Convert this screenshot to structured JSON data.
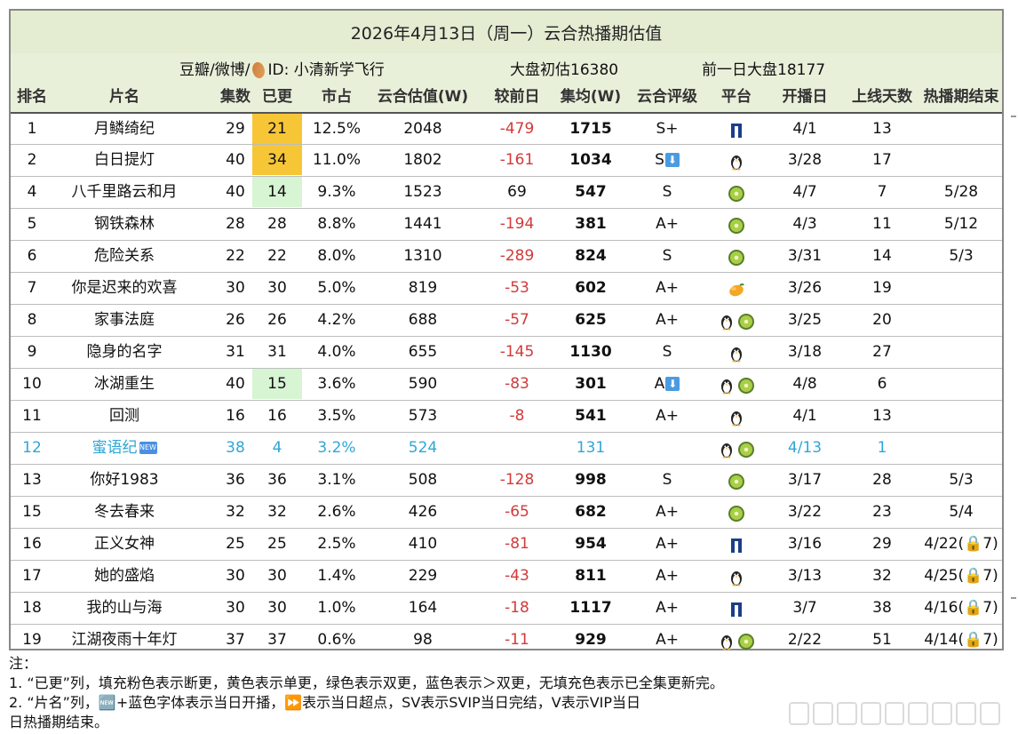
{
  "title": "2026年4月13日（周一）云合热播期估值",
  "subheader": {
    "source_prefix": "豆瓣/微博/",
    "source_id": "ID: 小清新学飞行",
    "market_initial": "大盘初估16380",
    "market_prev": "前一日大盘18177"
  },
  "columns": [
    "排名",
    "片名",
    "集数",
    "已更",
    "市占",
    "云合估值(W)",
    "较前日",
    "集均(W)",
    "云合评级",
    "平台",
    "开播日",
    "上线天数",
    "热播期结束"
  ],
  "colors": {
    "header_bg": "#e9f0da",
    "yellow": "#f7c637",
    "green": "#d7f4d3",
    "negative": "#d23a3a",
    "new_blue": "#2fa7d6"
  },
  "rows": [
    {
      "rank": "1",
      "name": "月鳞绮纪",
      "eps": "29",
      "aired": "21",
      "aired_fill": "yellow",
      "share": "12.5%",
      "est": "2048",
      "delta": "-479",
      "avg": "1715",
      "rating": "S+",
      "rating_arrow": "",
      "platforms": [
        "youku-icon"
      ],
      "start": "4/1",
      "days": "13",
      "end": ""
    },
    {
      "rank": "2",
      "name": "白日提灯",
      "eps": "40",
      "aired": "34",
      "aired_fill": "yellow",
      "share": "11.0%",
      "est": "1802",
      "delta": "-161",
      "avg": "1034",
      "rating": "S",
      "rating_arrow": "⬇",
      "platforms": [
        "tencent-penguin-icon"
      ],
      "start": "3/28",
      "days": "17",
      "end": ""
    },
    {
      "rank": "4",
      "name": "八千里路云和月",
      "eps": "40",
      "aired": "14",
      "aired_fill": "green",
      "share": "9.3%",
      "est": "1523",
      "delta": "69",
      "avg": "547",
      "rating": "S",
      "rating_arrow": "",
      "platforms": [
        "iqiyi-kiwi-icon"
      ],
      "start": "4/7",
      "days": "7",
      "end": "5/28"
    },
    {
      "rank": "5",
      "name": "钢铁森林",
      "eps": "28",
      "aired": "28",
      "aired_fill": "",
      "share": "8.8%",
      "est": "1441",
      "delta": "-194",
      "avg": "381",
      "rating": "A+",
      "rating_arrow": "",
      "platforms": [
        "iqiyi-kiwi-icon"
      ],
      "start": "4/3",
      "days": "11",
      "end": "5/12"
    },
    {
      "rank": "6",
      "name": "危险关系",
      "eps": "22",
      "aired": "22",
      "aired_fill": "",
      "share": "8.0%",
      "est": "1310",
      "delta": "-289",
      "avg": "824",
      "rating": "S",
      "rating_arrow": "",
      "platforms": [
        "iqiyi-kiwi-icon"
      ],
      "start": "3/31",
      "days": "14",
      "end": "5/3"
    },
    {
      "rank": "7",
      "name": "你是迟来的欢喜",
      "eps": "30",
      "aired": "30",
      "aired_fill": "",
      "share": "5.0%",
      "est": "819",
      "delta": "-53",
      "avg": "602",
      "rating": "A+",
      "rating_arrow": "",
      "platforms": [
        "mango-icon"
      ],
      "start": "3/26",
      "days": "19",
      "end": ""
    },
    {
      "rank": "8",
      "name": "家事法庭",
      "eps": "26",
      "aired": "26",
      "aired_fill": "",
      "share": "4.2%",
      "est": "688",
      "delta": "-57",
      "avg": "625",
      "rating": "A+",
      "rating_arrow": "",
      "platforms": [
        "tencent-penguin-icon",
        "iqiyi-kiwi-icon"
      ],
      "start": "3/25",
      "days": "20",
      "end": ""
    },
    {
      "rank": "9",
      "name": "隐身的名字",
      "eps": "31",
      "aired": "31",
      "aired_fill": "",
      "share": "4.0%",
      "est": "655",
      "delta": "-145",
      "avg": "1130",
      "rating": "S",
      "rating_arrow": "",
      "platforms": [
        "tencent-penguin-icon"
      ],
      "start": "3/18",
      "days": "27",
      "end": ""
    },
    {
      "rank": "10",
      "name": "冰湖重生",
      "eps": "40",
      "aired": "15",
      "aired_fill": "green",
      "share": "3.6%",
      "est": "590",
      "delta": "-83",
      "avg": "301",
      "rating": "A",
      "rating_arrow": "⬇",
      "platforms": [
        "tencent-penguin-icon",
        "iqiyi-kiwi-icon"
      ],
      "start": "4/8",
      "days": "6",
      "end": ""
    },
    {
      "rank": "11",
      "name": "回测",
      "eps": "16",
      "aired": "16",
      "aired_fill": "",
      "share": "3.5%",
      "est": "573",
      "delta": "-8",
      "avg": "541",
      "rating": "A+",
      "rating_arrow": "",
      "platforms": [
        "tencent-penguin-icon"
      ],
      "start": "4/1",
      "days": "13",
      "end": ""
    },
    {
      "rank": "12",
      "name": "蜜语纪",
      "is_new": true,
      "new_badge": "NEW",
      "eps": "38",
      "aired": "4",
      "aired_fill": "",
      "share": "3.2%",
      "est": "524",
      "delta": "",
      "avg": "131",
      "rating": "",
      "rating_arrow": "",
      "platforms": [
        "tencent-penguin-icon",
        "iqiyi-kiwi-icon"
      ],
      "start": "4/13",
      "days": "1",
      "end": ""
    },
    {
      "rank": "13",
      "name": "你好1983",
      "eps": "36",
      "aired": "36",
      "aired_fill": "",
      "share": "3.1%",
      "est": "508",
      "delta": "-128",
      "avg": "998",
      "rating": "S",
      "rating_arrow": "",
      "platforms": [
        "iqiyi-kiwi-icon"
      ],
      "start": "3/17",
      "days": "28",
      "end": "5/3"
    },
    {
      "rank": "15",
      "name": "冬去春来",
      "eps": "32",
      "aired": "32",
      "aired_fill": "",
      "share": "2.6%",
      "est": "426",
      "delta": "-65",
      "avg": "682",
      "rating": "A+",
      "rating_arrow": "",
      "platforms": [
        "iqiyi-kiwi-icon"
      ],
      "start": "3/22",
      "days": "23",
      "end": "5/4"
    },
    {
      "rank": "16",
      "name": "正义女神",
      "eps": "25",
      "aired": "25",
      "aired_fill": "",
      "share": "2.5%",
      "est": "410",
      "delta": "-81",
      "avg": "954",
      "rating": "A+",
      "rating_arrow": "",
      "platforms": [
        "youku-icon"
      ],
      "start": "3/16",
      "days": "29",
      "end": "4/22(🔒7)"
    },
    {
      "rank": "17",
      "name": "她的盛焰",
      "eps": "30",
      "aired": "30",
      "aired_fill": "",
      "share": "1.4%",
      "est": "229",
      "delta": "-43",
      "avg": "811",
      "rating": "A+",
      "rating_arrow": "",
      "platforms": [
        "tencent-penguin-icon"
      ],
      "start": "3/13",
      "days": "32",
      "end": "4/25(🔒7)"
    },
    {
      "rank": "18",
      "name": "我的山与海",
      "eps": "30",
      "aired": "30",
      "aired_fill": "",
      "share": "1.0%",
      "est": "164",
      "delta": "-18",
      "avg": "1117",
      "rating": "A+",
      "rating_arrow": "",
      "platforms": [
        "youku-icon"
      ],
      "start": "3/7",
      "days": "38",
      "end": "4/16(🔒7)"
    },
    {
      "rank": "19",
      "name": "江湖夜雨十年灯",
      "eps": "37",
      "aired": "37",
      "aired_fill": "",
      "share": "0.6%",
      "est": "98",
      "delta": "-11",
      "avg": "929",
      "rating": "A+",
      "rating_arrow": "",
      "platforms": [
        "tencent-penguin-icon",
        "iqiyi-kiwi-icon"
      ],
      "start": "2/22",
      "days": "51",
      "end": "4/14(🔒7)"
    }
  ],
  "notes": {
    "label": "注：",
    "line1": "1. “已更”列，填充粉色表示断更，黄色表示单更，绿色表示双更，蓝色表示＞双更，无填充色表示已全集更新完。",
    "line2": "2. “片名”列，🆕+蓝色字体表示当日开播，⏩表示当日超点，SV表示SVIP当日完结，V表示VIP当日",
    "line3": "日热播期结束。"
  }
}
